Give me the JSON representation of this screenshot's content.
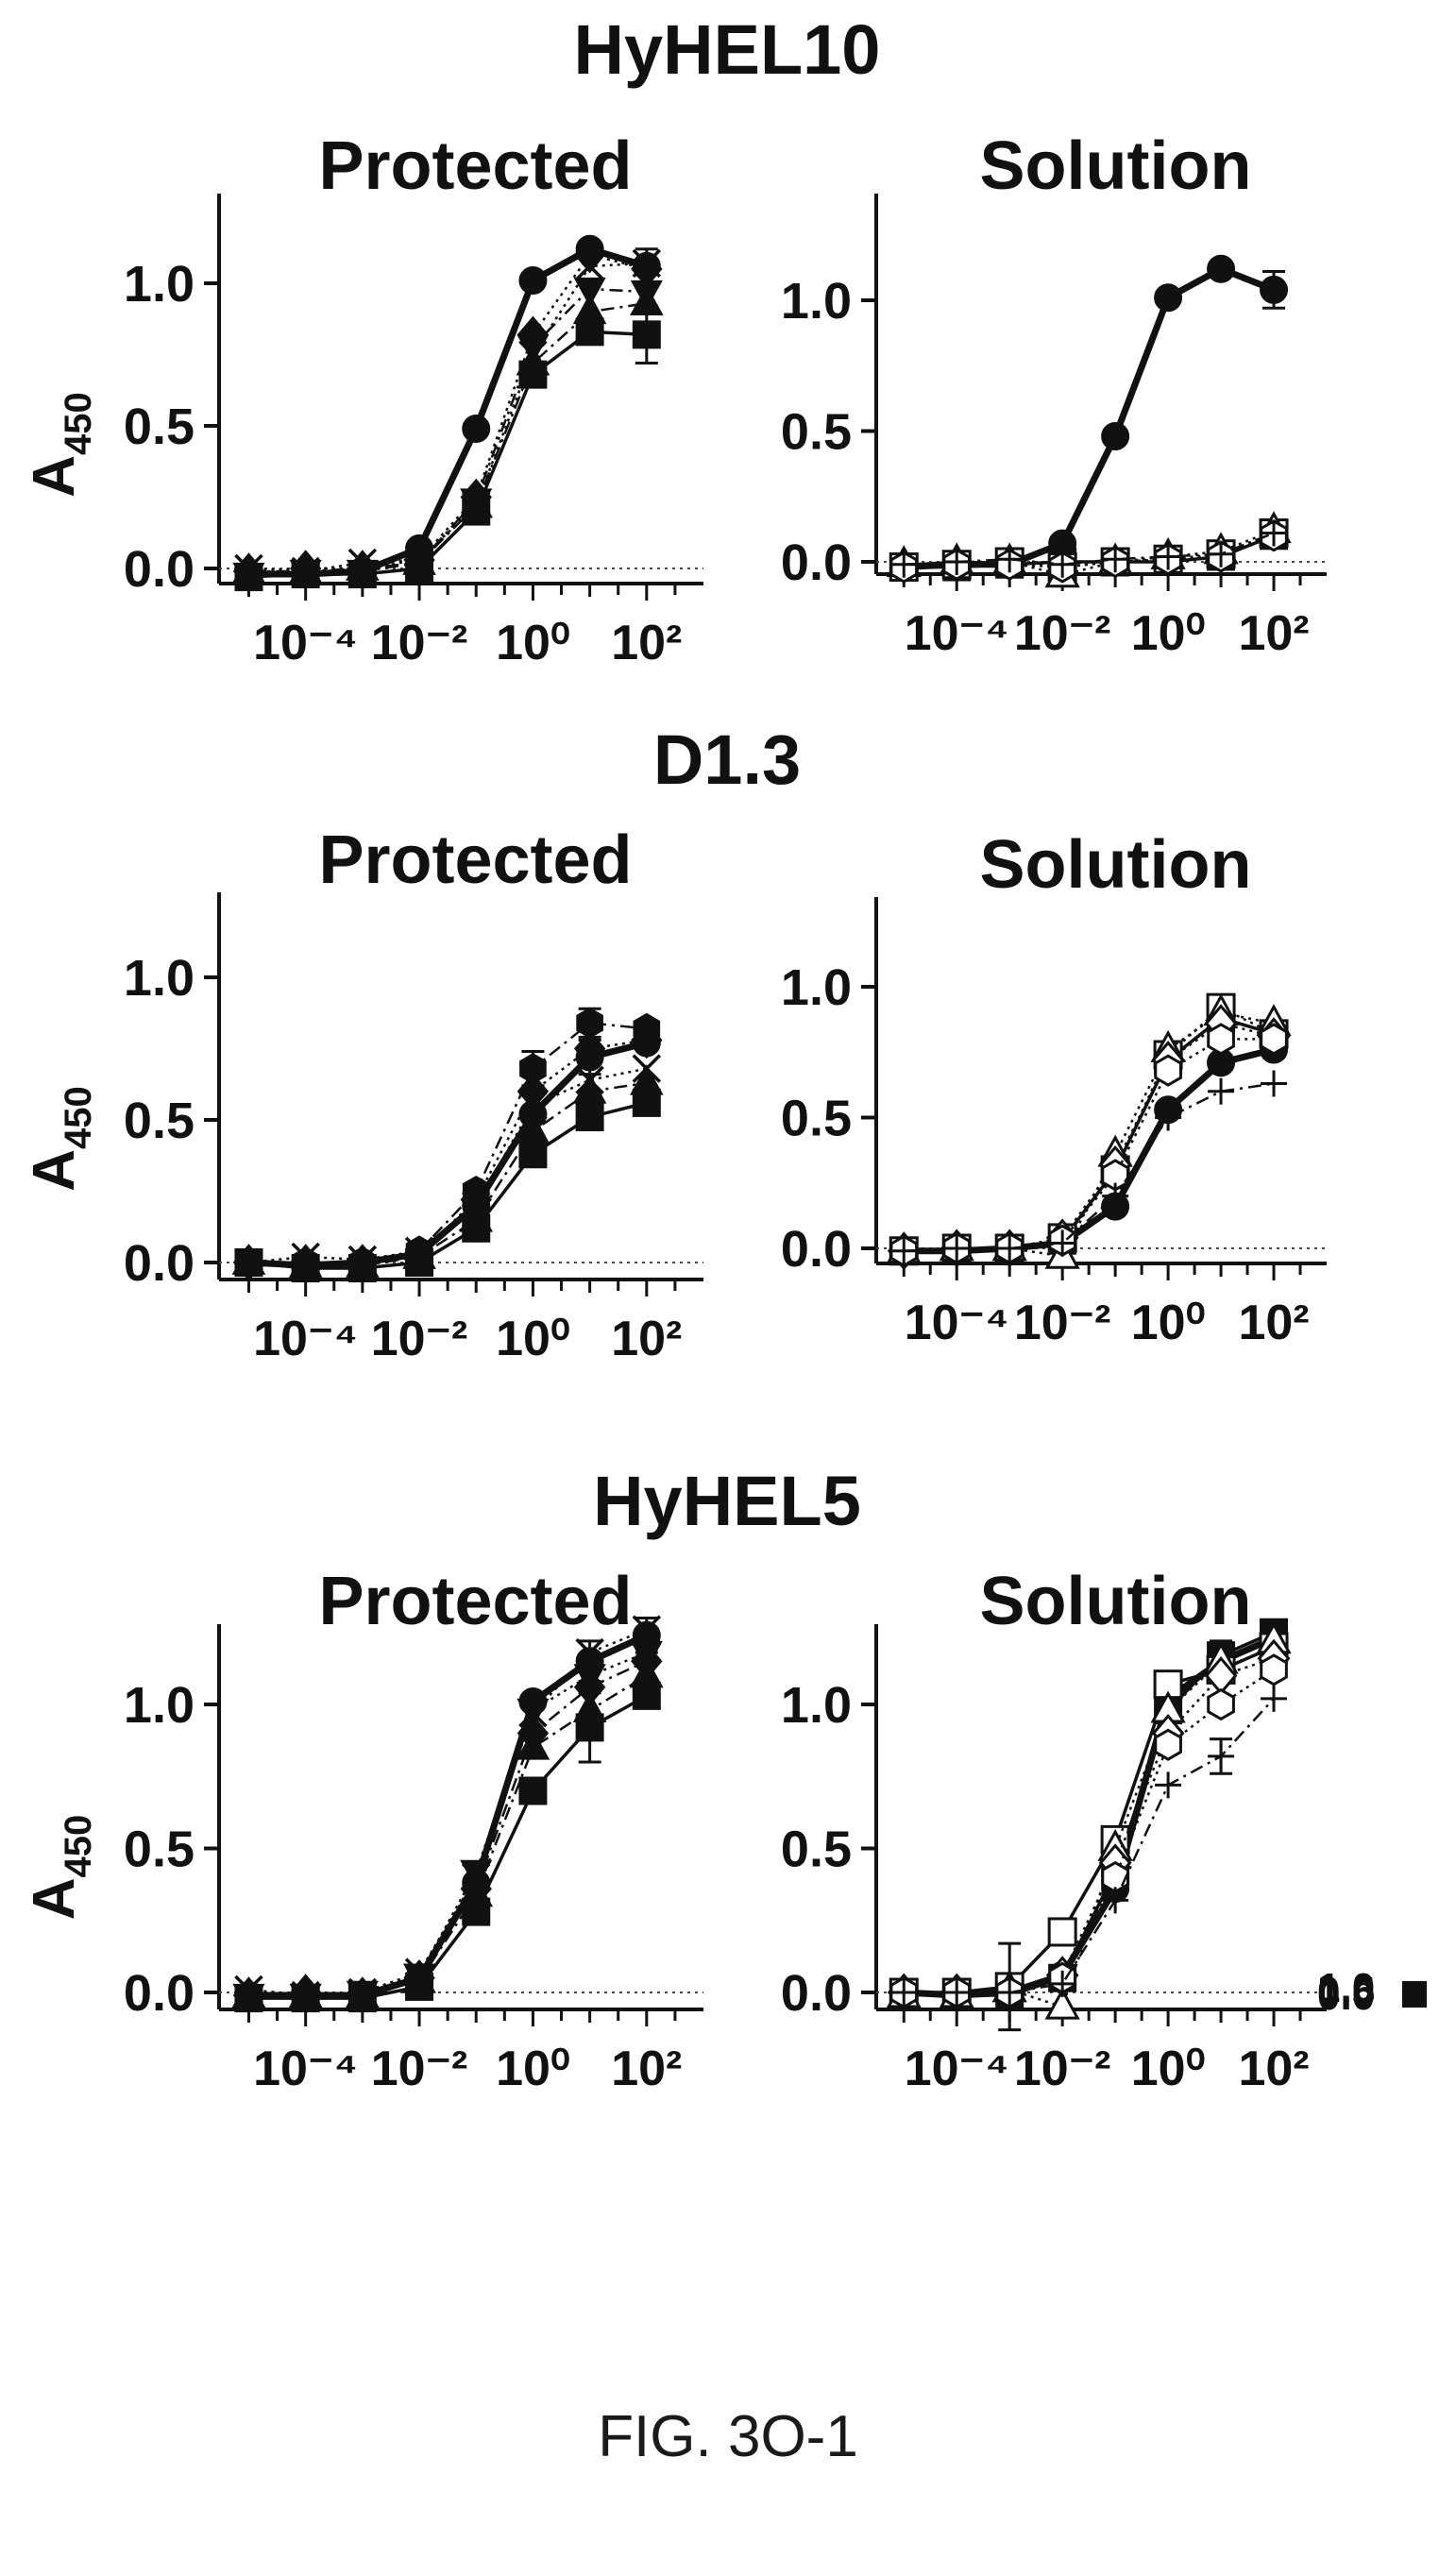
{
  "figure": {
    "caption": "FIG. 3O-1",
    "y_axis_label_main": "A",
    "y_axis_label_sub": "450",
    "marker_legend": [
      "filled-circle",
      "filled-square",
      "filled-triangle",
      "filled-diamond",
      "filled-inverted-triangle",
      "filled-hexagon",
      "x-mark",
      "open-square",
      "open-triangle",
      "open-diamond",
      "open-hexagon",
      "plus"
    ]
  },
  "chart_data": [
    {
      "type": "line",
      "group_title": "HyHEL10",
      "title": "Protected",
      "x_scale": "log",
      "x_ticks": [
        "10⁻⁴",
        "10⁻²",
        "10⁰",
        "10²"
      ],
      "xlim": [
        3e-06,
        1000
      ],
      "y_ticks": [
        "0.0",
        "0.5",
        "1.0"
      ],
      "ylim": [
        -0.08,
        1.25
      ],
      "x": [
        1e-05,
        0.0001,
        0.001,
        0.01,
        0.1,
        1,
        10,
        100
      ],
      "series": [
        {
          "marker": "filled-circle",
          "line": "solid-thick",
          "values": [
            -0.02,
            -0.02,
            -0.01,
            0.07,
            0.49,
            1.01,
            1.12,
            1.06
          ],
          "err": [
            0,
            0,
            0,
            0,
            0,
            0,
            0,
            0.06
          ]
        },
        {
          "marker": "filled-square",
          "line": "solid",
          "values": [
            -0.03,
            -0.02,
            -0.02,
            0.0,
            0.2,
            0.68,
            0.83,
            0.82
          ],
          "err": [
            0,
            0,
            0,
            0,
            0,
            0,
            0,
            0.1
          ]
        },
        {
          "marker": "filled-triangle",
          "line": "dashdot",
          "values": [
            -0.01,
            -0.01,
            0.0,
            0.02,
            0.22,
            0.72,
            0.9,
            0.93
          ],
          "err": [
            0,
            0,
            0,
            0,
            0,
            0,
            0,
            0
          ]
        },
        {
          "marker": "filled-diamond",
          "line": "dotted",
          "values": [
            -0.01,
            0.0,
            0.0,
            0.03,
            0.25,
            0.82,
            1.1,
            1.05
          ],
          "err": [
            0,
            0,
            0,
            0,
            0,
            0,
            0,
            0
          ]
        },
        {
          "marker": "filled-inverted-triangle",
          "line": "dashdot",
          "values": [
            -0.02,
            -0.01,
            -0.01,
            0.02,
            0.24,
            0.78,
            0.98,
            0.97
          ],
          "err": [
            0,
            0,
            0,
            0,
            0,
            0,
            0,
            0
          ]
        },
        {
          "marker": "x-mark",
          "line": "dotted",
          "values": [
            0.0,
            -0.01,
            0.02,
            0.03,
            0.22,
            0.75,
            1.06,
            1.07
          ],
          "err": [
            0,
            0,
            0,
            0,
            0,
            0,
            0,
            0
          ]
        }
      ]
    },
    {
      "type": "line",
      "group_title": "",
      "title": "Solution",
      "x_scale": "log",
      "x_ticks": [
        "10⁻⁴",
        "10⁻²",
        "10⁰",
        "10²"
      ],
      "xlim": [
        3e-06,
        1000
      ],
      "y_ticks": [
        "0.0",
        "0.5",
        "1.0"
      ],
      "ylim": [
        -0.08,
        1.25
      ],
      "x": [
        1e-05,
        0.0001,
        0.001,
        0.01,
        0.1,
        1,
        10,
        100
      ],
      "series": [
        {
          "marker": "filled-circle",
          "line": "solid-thick",
          "values": [
            -0.02,
            -0.01,
            -0.01,
            0.07,
            0.48,
            1.01,
            1.12,
            1.04
          ],
          "err": [
            0,
            0,
            0,
            0,
            0,
            0,
            0,
            0.07
          ]
        },
        {
          "marker": "filled-square",
          "line": "solid",
          "values": [
            -0.02,
            -0.02,
            -0.01,
            0.0,
            0.0,
            0.0,
            0.02,
            0.1
          ],
          "err": [
            0,
            0,
            0,
            0,
            0,
            0,
            0,
            0
          ]
        },
        {
          "marker": "open-square",
          "line": "dotted",
          "values": [
            -0.02,
            -0.01,
            0.0,
            -0.02,
            0.0,
            0.01,
            0.03,
            0.11
          ],
          "err": [
            0,
            0,
            0,
            0,
            0,
            0,
            0,
            0
          ]
        },
        {
          "marker": "open-triangle",
          "line": "dotted",
          "values": [
            -0.01,
            0.0,
            0.0,
            -0.05,
            0.0,
            0.02,
            0.04,
            0.12
          ],
          "err": [
            0,
            0,
            0,
            0,
            0,
            0,
            0,
            0
          ]
        },
        {
          "marker": "open-hexagon",
          "line": "dotted",
          "values": [
            -0.02,
            -0.01,
            -0.01,
            -0.02,
            0.0,
            0.01,
            0.02,
            0.1
          ],
          "err": [
            0,
            0,
            0,
            0,
            0,
            0,
            0,
            0
          ]
        },
        {
          "marker": "plus",
          "line": "dashdot",
          "values": [
            -0.01,
            0.0,
            0.01,
            -0.01,
            0.01,
            0.02,
            0.03,
            0.11
          ],
          "err": [
            0,
            0,
            0,
            0,
            0,
            0,
            0,
            0
          ]
        }
      ]
    },
    {
      "type": "line",
      "group_title": "D1.3",
      "title": "Protected",
      "x_scale": "log",
      "x_ticks": [
        "10⁻⁴",
        "10⁻²",
        "10⁰",
        "10²"
      ],
      "xlim": [
        3e-06,
        1000
      ],
      "y_ticks": [
        "0.0",
        "0.5",
        "1.0"
      ],
      "ylim": [
        -0.08,
        1.25
      ],
      "x": [
        1e-05,
        0.0001,
        0.001,
        0.01,
        0.1,
        1,
        10,
        100
      ],
      "series": [
        {
          "marker": "filled-circle",
          "line": "solid-thick",
          "values": [
            0.0,
            -0.01,
            0.0,
            0.03,
            0.2,
            0.52,
            0.72,
            0.77
          ],
          "err": [
            0,
            0,
            0,
            0,
            0,
            0,
            0.06,
            0
          ]
        },
        {
          "marker": "filled-square",
          "line": "solid",
          "values": [
            0.0,
            -0.02,
            -0.02,
            0.0,
            0.12,
            0.38,
            0.51,
            0.56
          ],
          "err": [
            0,
            0,
            0,
            0,
            0,
            0,
            0.04,
            0
          ]
        },
        {
          "marker": "filled-triangle",
          "line": "dashdot",
          "values": [
            0.0,
            -0.01,
            -0.01,
            0.02,
            0.15,
            0.46,
            0.6,
            0.63
          ],
          "err": [
            0,
            0,
            0,
            0,
            0,
            0,
            0,
            0
          ]
        },
        {
          "marker": "filled-hexagon",
          "line": "dashdot",
          "values": [
            0.0,
            0.0,
            0.0,
            0.04,
            0.25,
            0.68,
            0.84,
            0.82
          ],
          "err": [
            0,
            0,
            0,
            0,
            0,
            0.06,
            0.05,
            0
          ]
        },
        {
          "marker": "filled-diamond",
          "line": "dotted",
          "values": [
            0.0,
            0.0,
            0.0,
            0.03,
            0.22,
            0.6,
            0.75,
            0.78
          ],
          "err": [
            0,
            0,
            0,
            0,
            0,
            0,
            0,
            0
          ]
        },
        {
          "marker": "x-mark",
          "line": "dotted",
          "values": [
            0.0,
            0.02,
            0.01,
            0.04,
            0.2,
            0.55,
            0.64,
            0.68
          ],
          "err": [
            0,
            0,
            0,
            0,
            0,
            0,
            0,
            0
          ]
        }
      ]
    },
    {
      "type": "line",
      "group_title": "",
      "title": "Solution",
      "x_scale": "log",
      "x_ticks": [
        "10⁻⁴",
        "10⁻²",
        "10⁰",
        "10²"
      ],
      "xlim": [
        3e-06,
        1000
      ],
      "y_ticks": [
        "0.0",
        "0.5",
        "1.0"
      ],
      "ylim": [
        -0.08,
        1.25
      ],
      "x": [
        1e-05,
        0.0001,
        0.001,
        0.01,
        0.1,
        1,
        10,
        100
      ],
      "series": [
        {
          "marker": "filled-circle",
          "line": "solid-thick",
          "values": [
            -0.01,
            -0.01,
            0.0,
            0.02,
            0.16,
            0.53,
            0.71,
            0.76
          ],
          "err": [
            0,
            0,
            0,
            0,
            0,
            0,
            0,
            0.03
          ]
        },
        {
          "marker": "filled-square",
          "line": "solid",
          "values": [
            -0.01,
            -0.01,
            0.0,
            0.03,
            0.3,
            0.72,
            0.88,
            0.82
          ],
          "err": [
            0,
            0,
            0,
            0,
            0,
            0,
            0,
            0
          ]
        },
        {
          "marker": "open-square",
          "line": "dotted",
          "values": [
            -0.01,
            0.0,
            0.0,
            0.04,
            0.3,
            0.74,
            0.92,
            0.82
          ],
          "err": [
            0,
            0,
            0,
            0,
            0,
            0,
            0,
            0
          ]
        },
        {
          "marker": "open-triangle",
          "line": "dotted",
          "values": [
            -0.01,
            0.0,
            0.0,
            -0.03,
            0.36,
            0.76,
            0.9,
            0.86
          ],
          "err": [
            0,
            0,
            0,
            0,
            0,
            0,
            0,
            0
          ]
        },
        {
          "marker": "open-diamond",
          "line": "dotted",
          "values": [
            -0.01,
            0.0,
            0.0,
            0.04,
            0.32,
            0.72,
            0.86,
            0.81
          ],
          "err": [
            0,
            0,
            0,
            0,
            0,
            0,
            0,
            0
          ]
        },
        {
          "marker": "open-hexagon",
          "line": "dotted",
          "values": [
            -0.01,
            0.0,
            0.0,
            0.03,
            0.28,
            0.68,
            0.8,
            0.8
          ],
          "err": [
            0,
            0,
            0,
            0,
            0,
            0,
            0,
            0
          ]
        },
        {
          "marker": "plus",
          "line": "dashdot",
          "values": [
            -0.01,
            0.0,
            0.0,
            0.02,
            0.2,
            0.5,
            0.6,
            0.63
          ],
          "err": [
            0,
            0,
            0,
            0,
            0,
            0,
            0,
            0
          ]
        }
      ]
    },
    {
      "type": "line",
      "group_title": "HyHEL5",
      "title": "Protected",
      "x_scale": "log",
      "x_ticks": [
        "10⁻⁴",
        "10⁻²",
        "10⁰",
        "10²"
      ],
      "xlim": [
        3e-06,
        1000
      ],
      "y_ticks": [
        "0.0",
        "0.5",
        "1.0"
      ],
      "ylim": [
        -0.08,
        1.25
      ],
      "x": [
        1e-05,
        0.0001,
        0.001,
        0.01,
        0.1,
        1,
        10,
        100
      ],
      "series": [
        {
          "marker": "filled-circle",
          "line": "solid-thick",
          "values": [
            -0.01,
            -0.01,
            -0.01,
            0.05,
            0.38,
            1.01,
            1.15,
            1.24
          ],
          "err": [
            0,
            0,
            0,
            0,
            0,
            0,
            0.07,
            0.06
          ]
        },
        {
          "marker": "filled-square",
          "line": "solid",
          "values": [
            -0.02,
            -0.02,
            -0.02,
            0.02,
            0.28,
            0.7,
            0.92,
            1.03
          ],
          "err": [
            0,
            0,
            0,
            0,
            0,
            0,
            0.12,
            0
          ]
        },
        {
          "marker": "filled-triangle",
          "line": "dashdot",
          "values": [
            -0.01,
            -0.01,
            -0.01,
            0.04,
            0.34,
            0.85,
            0.98,
            1.1
          ],
          "err": [
            0,
            0,
            0,
            0,
            0,
            0,
            0,
            0
          ]
        },
        {
          "marker": "filled-inverted-triangle",
          "line": "dotted",
          "values": [
            -0.01,
            -0.01,
            0.0,
            0.06,
            0.42,
            0.98,
            1.1,
            1.18
          ],
          "err": [
            0,
            0,
            0,
            0,
            0,
            0,
            0,
            0
          ]
        },
        {
          "marker": "filled-diamond",
          "line": "dashdot",
          "values": [
            -0.01,
            0.0,
            -0.01,
            0.05,
            0.36,
            0.9,
            1.06,
            1.15
          ],
          "err": [
            0,
            0,
            0,
            0,
            0,
            0,
            0,
            0
          ]
        },
        {
          "marker": "x-mark",
          "line": "dotted",
          "values": [
            0.01,
            -0.01,
            0.0,
            0.07,
            0.4,
            0.97,
            1.18,
            1.26
          ],
          "err": [
            0,
            0,
            0,
            0,
            0,
            0,
            0,
            0
          ]
        }
      ]
    },
    {
      "type": "line",
      "group_title": "",
      "title": "Solution",
      "x_scale": "log",
      "x_ticks": [
        "10⁻⁴",
        "10⁻²",
        "10⁰",
        "10²"
      ],
      "xlim": [
        3e-06,
        1000
      ],
      "y_ticks": [
        "0.0",
        "0.5",
        "1.0"
      ],
      "ylim": [
        -0.08,
        1.25
      ],
      "x": [
        1e-05,
        0.0001,
        0.001,
        0.01,
        0.1,
        1,
        10,
        100
      ],
      "series": [
        {
          "marker": "filled-circle",
          "line": "solid-thick",
          "values": [
            0.0,
            -0.01,
            0.0,
            0.06,
            0.36,
            1.02,
            1.15,
            1.23
          ],
          "err": [
            0,
            0,
            0,
            0,
            0,
            0,
            0.07,
            0
          ]
        },
        {
          "marker": "filled-square",
          "line": "solid",
          "values": [
            0.0,
            -0.01,
            -0.01,
            0.05,
            0.42,
            0.98,
            1.17,
            1.25
          ],
          "err": [
            0,
            0,
            0,
            0,
            0,
            0,
            0,
            0
          ]
        },
        {
          "marker": "open-square",
          "line": "solid",
          "values": [
            0.0,
            0.0,
            0.02,
            0.21,
            0.53,
            1.07,
            1.12,
            1.2
          ],
          "err": [
            0,
            0,
            0.15,
            0,
            0,
            0,
            0,
            0
          ]
        },
        {
          "marker": "open-triangle",
          "line": "dotted",
          "values": [
            -0.01,
            -0.01,
            0.01,
            -0.05,
            0.5,
            0.98,
            1.15,
            1.22
          ],
          "err": [
            0,
            0,
            0,
            0,
            0,
            0,
            0,
            0
          ]
        },
        {
          "marker": "open-diamond",
          "line": "dotted",
          "values": [
            0.0,
            0.0,
            0.0,
            0.06,
            0.45,
            0.9,
            1.1,
            1.16
          ],
          "err": [
            0,
            0,
            0,
            0,
            0,
            0,
            0,
            0
          ]
        },
        {
          "marker": "open-hexagon",
          "line": "dotted",
          "values": [
            0.0,
            0.0,
            0.0,
            0.05,
            0.4,
            0.86,
            1.0,
            1.12
          ],
          "err": [
            0,
            0,
            0,
            0,
            0,
            0,
            0,
            0
          ]
        },
        {
          "marker": "plus",
          "line": "dashdot",
          "values": [
            0.0,
            0.0,
            0.0,
            0.03,
            0.32,
            0.72,
            0.82,
            1.02
          ],
          "err": [
            0,
            0,
            0,
            0,
            0,
            0,
            0.06,
            0
          ]
        }
      ],
      "overlap_labels": [
        "1.0",
        "0.5",
        "0.0"
      ]
    }
  ]
}
